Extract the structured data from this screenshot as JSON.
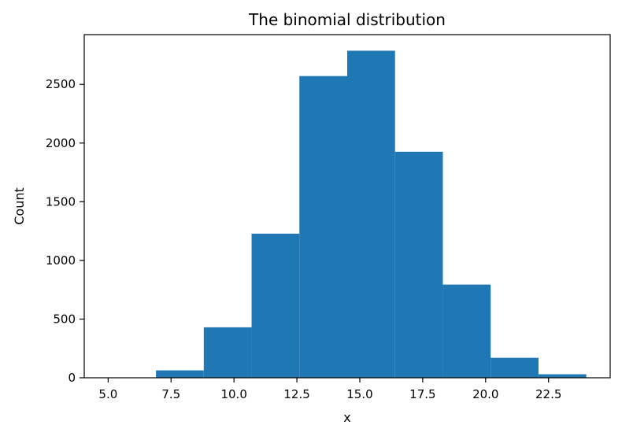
{
  "chart_data": {
    "type": "bar",
    "title": "The binomial distribution",
    "xlabel": "x",
    "ylabel": "Count",
    "xlim": [
      4.05,
      24.95
    ],
    "ylim": [
      0,
      2924
    ],
    "xticks": [
      5.0,
      7.5,
      10.0,
      12.5,
      15.0,
      17.5,
      20.0,
      22.5
    ],
    "xtick_labels": [
      "5.0",
      "7.5",
      "10.0",
      "12.5",
      "15.0",
      "17.5",
      "20.0",
      "22.5"
    ],
    "yticks": [
      0,
      500,
      1000,
      1500,
      2000,
      2500
    ],
    "ytick_labels": [
      "0",
      "500",
      "1000",
      "1500",
      "2000",
      "2500"
    ],
    "bin_edges": [
      5.0,
      6.9,
      8.8,
      10.7,
      12.6,
      14.5,
      16.4,
      18.3,
      20.2,
      22.1,
      24.0
    ],
    "values": [
      3,
      63,
      430,
      1228,
      2571,
      2787,
      1926,
      794,
      170,
      30
    ],
    "bar_color": "#1f77b4",
    "grid": false
  }
}
